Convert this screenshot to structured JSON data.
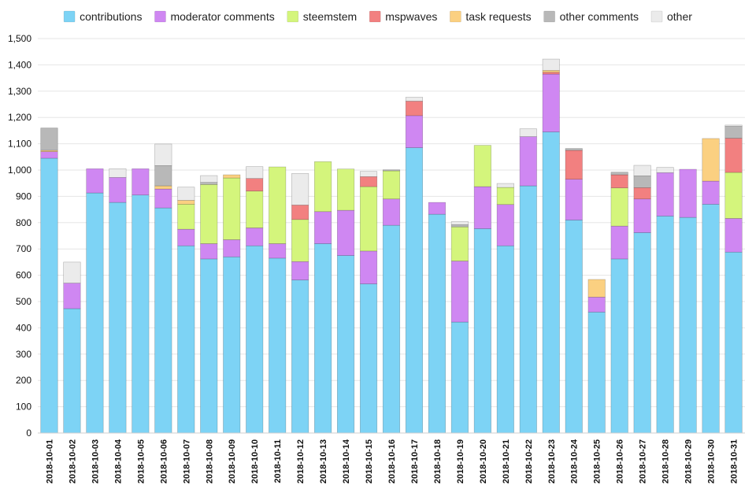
{
  "chart_data": {
    "type": "bar",
    "stacked": true,
    "title": "",
    "xlabel": "",
    "ylabel": "",
    "ylim": [
      0,
      1500
    ],
    "yticks": [
      0,
      100,
      200,
      300,
      400,
      500,
      600,
      700,
      800,
      900,
      1000,
      1100,
      1200,
      1300,
      1400,
      1500
    ],
    "ytick_labels": [
      "0",
      "100",
      "200",
      "300",
      "400",
      "500",
      "600",
      "700",
      "800",
      "900",
      "1,000",
      "1,100",
      "1,200",
      "1,300",
      "1,400",
      "1,500"
    ],
    "grid": true,
    "legend_position": "top",
    "categories": [
      "2018-10-01",
      "2018-10-02",
      "2018-10-03",
      "2018-10-04",
      "2018-10-05",
      "2018-10-06",
      "2018-10-07",
      "2018-10-08",
      "2018-10-09",
      "2018-10-10",
      "2018-10-11",
      "2018-10-12",
      "2018-10-13",
      "2018-10-14",
      "2018-10-15",
      "2018-10-16",
      "2018-10-17",
      "2018-10-18",
      "2018-10-19",
      "2018-10-20",
      "2018-10-21",
      "2018-10-22",
      "2018-10-23",
      "2018-10-24",
      "2018-10-25",
      "2018-10-26",
      "2018-10-27",
      "2018-10-28",
      "2018-10-29",
      "2018-10-30",
      "2018-10-31"
    ],
    "series": [
      {
        "name": "contributions",
        "color": "#7dd3f5",
        "values": [
          1045,
          473,
          913,
          877,
          905,
          856,
          712,
          662,
          670,
          712,
          665,
          582,
          720,
          675,
          567,
          790,
          1085,
          832,
          422,
          777,
          712,
          940,
          1145,
          810,
          460,
          662,
          762,
          825,
          820,
          870,
          688
        ]
      },
      {
        "name": "moderator comments",
        "color": "#cf87f2",
        "values": [
          25,
          97,
          92,
          95,
          100,
          72,
          63,
          58,
          65,
          68,
          55,
          70,
          122,
          172,
          125,
          100,
          122,
          45,
          232,
          160,
          157,
          187,
          220,
          155,
          57,
          125,
          128,
          165,
          183,
          88,
          128
        ]
      },
      {
        "name": "steemstem",
        "color": "#d4f57c",
        "values": [
          0,
          0,
          0,
          0,
          0,
          0,
          95,
          225,
          235,
          140,
          292,
          160,
          190,
          157,
          245,
          107,
          0,
          0,
          130,
          157,
          65,
          0,
          0,
          0,
          0,
          145,
          0,
          0,
          0,
          0,
          175
        ]
      },
      {
        "name": "mspwaves",
        "color": "#f28080",
        "values": [
          0,
          0,
          0,
          0,
          0,
          0,
          0,
          0,
          0,
          48,
          0,
          55,
          0,
          0,
          38,
          0,
          55,
          0,
          0,
          0,
          0,
          0,
          7,
          110,
          0,
          50,
          43,
          0,
          0,
          0,
          130
        ]
      },
      {
        "name": "task requests",
        "color": "#fbd081",
        "values": [
          5,
          0,
          0,
          0,
          0,
          12,
          15,
          0,
          12,
          0,
          0,
          0,
          0,
          0,
          0,
          0,
          0,
          0,
          0,
          0,
          0,
          0,
          7,
          0,
          67,
          0,
          0,
          0,
          0,
          162,
          0
        ]
      },
      {
        "name": "other comments",
        "color": "#b8b8b8",
        "values": [
          85,
          0,
          0,
          0,
          0,
          77,
          0,
          8,
          0,
          0,
          0,
          0,
          0,
          0,
          0,
          4,
          0,
          0,
          8,
          0,
          0,
          0,
          0,
          7,
          0,
          10,
          45,
          0,
          0,
          0,
          45
        ]
      },
      {
        "name": "other",
        "color": "#ebebeb",
        "values": [
          0,
          80,
          0,
          33,
          0,
          82,
          50,
          26,
          0,
          45,
          0,
          120,
          0,
          0,
          20,
          0,
          15,
          0,
          12,
          0,
          15,
          30,
          43,
          0,
          0,
          0,
          40,
          20,
          0,
          0,
          5
        ]
      }
    ]
  }
}
